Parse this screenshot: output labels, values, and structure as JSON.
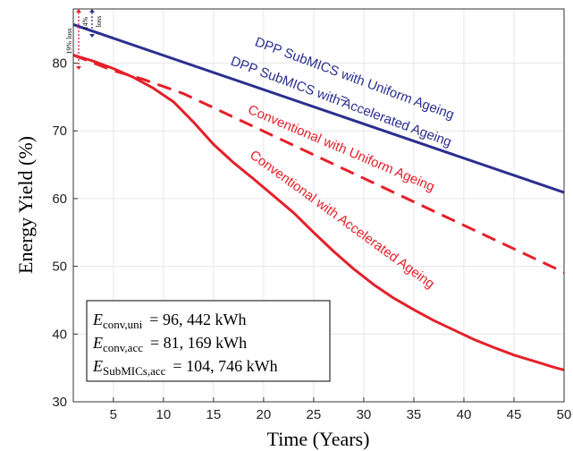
{
  "chart_data": {
    "type": "line",
    "xlabel": "Time (Years)",
    "ylabel": "Energy Yield (%)",
    "xlim": [
      1,
      50
    ],
    "ylim": [
      30,
      88
    ],
    "xticks": [
      5,
      10,
      15,
      20,
      25,
      30,
      35,
      40,
      45,
      50
    ],
    "yticks": [
      30,
      40,
      50,
      60,
      70,
      80
    ],
    "grid": true,
    "colors": {
      "blue": "#2b2f8f",
      "red": "#e4202a"
    },
    "series": [
      {
        "line_style": "solid",
        "color": "#2b2f8f",
        "x": [
          1,
          50
        ],
        "y": [
          85.7,
          60.9
        ]
      },
      {
        "line_style": "dashed",
        "color": "#e4202a",
        "x": [
          1,
          5,
          8,
          12,
          50
        ],
        "y": [
          81.2,
          78.9,
          77.6,
          75.5,
          49.1
        ]
      },
      {
        "line_style": "solid",
        "color": "#e4202a",
        "x": [
          1,
          3,
          5,
          7,
          9,
          11,
          13,
          15,
          17,
          19,
          21,
          23,
          25,
          27,
          29,
          31,
          33,
          35,
          37,
          39,
          41,
          43,
          45,
          47,
          49,
          50
        ],
        "y": [
          81.2,
          80.3,
          79.2,
          77.9,
          76.3,
          74.3,
          71.3,
          68.0,
          65.3,
          62.9,
          60.4,
          57.9,
          55.0,
          52.2,
          49.6,
          47.3,
          45.3,
          43.6,
          42.0,
          40.6,
          39.2,
          38.0,
          36.9,
          36.0,
          35.1,
          34.7
        ]
      }
    ],
    "annotations": {
      "blue_label_top": "DPP SubMICS with Uniform Ageing",
      "blue_label_eq": "=",
      "blue_label_bottom": "DPP SubMICS with Accelerated Ageing",
      "red_dashed_label": "Conventional with Uniform Ageing",
      "red_solid_label": "Conventional with Accelerated Ageing",
      "loss_19": "19% loss",
      "loss_14_value": "14%",
      "loss_14_word": "loss"
    },
    "legend_box": {
      "rows": [
        {
          "sym": "E",
          "sub": "conv,uni",
          "value": "= 96, 442 kWh"
        },
        {
          "sym": "E",
          "sub": "conv,acc",
          "value": "= 81, 169 kWh"
        },
        {
          "sym": "E",
          "sub": "SubMICs,acc",
          "value": "= 104, 746 kWh"
        }
      ]
    }
  }
}
